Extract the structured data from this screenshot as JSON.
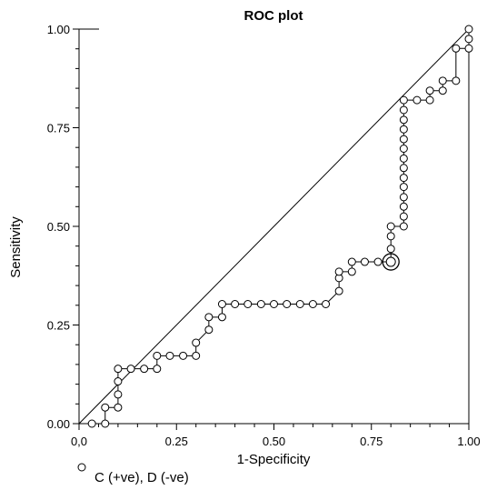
{
  "chart_data": {
    "type": "line",
    "title": "ROC plot",
    "xlabel": "1-Specificity",
    "ylabel": "Sensitivity",
    "xlim": [
      0,
      1
    ],
    "ylim": [
      0,
      1
    ],
    "x_ticks": [
      {
        "value": 0,
        "label": "0,0"
      },
      {
        "value": 0.25,
        "label": "0.25"
      },
      {
        "value": 0.5,
        "label": "0.50"
      },
      {
        "value": 0.75,
        "label": "0.75"
      },
      {
        "value": 1,
        "label": "1.00"
      }
    ],
    "y_ticks": [
      {
        "value": 0,
        "label": "0.00"
      },
      {
        "value": 0.25,
        "label": "0.25"
      },
      {
        "value": 0.5,
        "label": "0.50"
      },
      {
        "value": 0.75,
        "label": "0.75"
      },
      {
        "value": 1,
        "label": "1.00"
      }
    ],
    "grid": false,
    "legend": {
      "position": "bottom-left",
      "label": "C (+ve), D (-ve)"
    },
    "reference_line": [
      [
        0,
        0
      ],
      [
        1,
        1
      ]
    ],
    "highlight_point": {
      "x": 0.8,
      "y": 0.41
    },
    "series": [
      {
        "values": [
          {
            "x": 0.033,
            "y": 0.0
          },
          {
            "x": 0.067,
            "y": 0.0
          },
          {
            "x": 0.067,
            "y": 0.041
          },
          {
            "x": 0.1,
            "y": 0.041
          },
          {
            "x": 0.1,
            "y": 0.074
          },
          {
            "x": 0.1,
            "y": 0.107
          },
          {
            "x": 0.1,
            "y": 0.139
          },
          {
            "x": 0.133,
            "y": 0.139
          },
          {
            "x": 0.167,
            "y": 0.139
          },
          {
            "x": 0.2,
            "y": 0.139
          },
          {
            "x": 0.2,
            "y": 0.172
          },
          {
            "x": 0.233,
            "y": 0.172
          },
          {
            "x": 0.267,
            "y": 0.172
          },
          {
            "x": 0.3,
            "y": 0.172
          },
          {
            "x": 0.3,
            "y": 0.205
          },
          {
            "x": 0.333,
            "y": 0.238
          },
          {
            "x": 0.333,
            "y": 0.27
          },
          {
            "x": 0.367,
            "y": 0.27
          },
          {
            "x": 0.367,
            "y": 0.303
          },
          {
            "x": 0.4,
            "y": 0.303
          },
          {
            "x": 0.433,
            "y": 0.303
          },
          {
            "x": 0.467,
            "y": 0.303
          },
          {
            "x": 0.5,
            "y": 0.303
          },
          {
            "x": 0.533,
            "y": 0.303
          },
          {
            "x": 0.567,
            "y": 0.303
          },
          {
            "x": 0.6,
            "y": 0.303
          },
          {
            "x": 0.633,
            "y": 0.303
          },
          {
            "x": 0.667,
            "y": 0.336
          },
          {
            "x": 0.667,
            "y": 0.369
          },
          {
            "x": 0.667,
            "y": 0.385
          },
          {
            "x": 0.7,
            "y": 0.385
          },
          {
            "x": 0.7,
            "y": 0.41
          },
          {
            "x": 0.733,
            "y": 0.41
          },
          {
            "x": 0.767,
            "y": 0.41
          },
          {
            "x": 0.8,
            "y": 0.41
          },
          {
            "x": 0.8,
            "y": 0.443
          },
          {
            "x": 0.8,
            "y": 0.475
          },
          {
            "x": 0.8,
            "y": 0.5
          },
          {
            "x": 0.833,
            "y": 0.5
          },
          {
            "x": 0.833,
            "y": 0.525
          },
          {
            "x": 0.833,
            "y": 0.55
          },
          {
            "x": 0.833,
            "y": 0.574
          },
          {
            "x": 0.833,
            "y": 0.6
          },
          {
            "x": 0.833,
            "y": 0.623
          },
          {
            "x": 0.833,
            "y": 0.648
          },
          {
            "x": 0.833,
            "y": 0.672
          },
          {
            "x": 0.833,
            "y": 0.697
          },
          {
            "x": 0.833,
            "y": 0.721
          },
          {
            "x": 0.833,
            "y": 0.746
          },
          {
            "x": 0.833,
            "y": 0.77
          },
          {
            "x": 0.833,
            "y": 0.795
          },
          {
            "x": 0.833,
            "y": 0.82
          },
          {
            "x": 0.867,
            "y": 0.82
          },
          {
            "x": 0.9,
            "y": 0.82
          },
          {
            "x": 0.9,
            "y": 0.844
          },
          {
            "x": 0.933,
            "y": 0.844
          },
          {
            "x": 0.933,
            "y": 0.869
          },
          {
            "x": 0.967,
            "y": 0.869
          },
          {
            "x": 0.967,
            "y": 0.951
          },
          {
            "x": 1.0,
            "y": 0.951
          },
          {
            "x": 1.0,
            "y": 0.975
          },
          {
            "x": 1.0,
            "y": 1.0
          }
        ]
      }
    ]
  }
}
